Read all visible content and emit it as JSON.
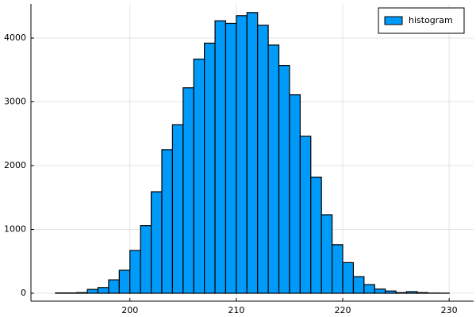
{
  "chart_data": {
    "type": "histogram",
    "bins": [
      193,
      194,
      195,
      196,
      197,
      198,
      199,
      200,
      201,
      202,
      203,
      204,
      205,
      206,
      207,
      208,
      209,
      210,
      211,
      212,
      213,
      214,
      215,
      216,
      217,
      218,
      219,
      220,
      221,
      222,
      223,
      224,
      225,
      226,
      227,
      228,
      229,
      230
    ],
    "series": [
      {
        "name": "histogram",
        "color": "#009af9",
        "values": [
          5,
          5,
          10,
          60,
          90,
          210,
          360,
          670,
          1060,
          1590,
          2250,
          2640,
          3220,
          3670,
          3920,
          4270,
          4230,
          4350,
          4400,
          4200,
          3890,
          3570,
          3110,
          2460,
          1820,
          1230,
          760,
          480,
          260,
          135,
          65,
          35,
          10,
          25,
          10,
          3,
          2
        ]
      }
    ],
    "xlim": [
      190.7,
      232.3
    ],
    "xticks": [
      200,
      210,
      220,
      230
    ],
    "ylim": [
      -124,
      4534
    ],
    "yticks": [
      0,
      1000,
      2000,
      3000,
      4000
    ],
    "grid": true,
    "legend_position": "top-right"
  }
}
